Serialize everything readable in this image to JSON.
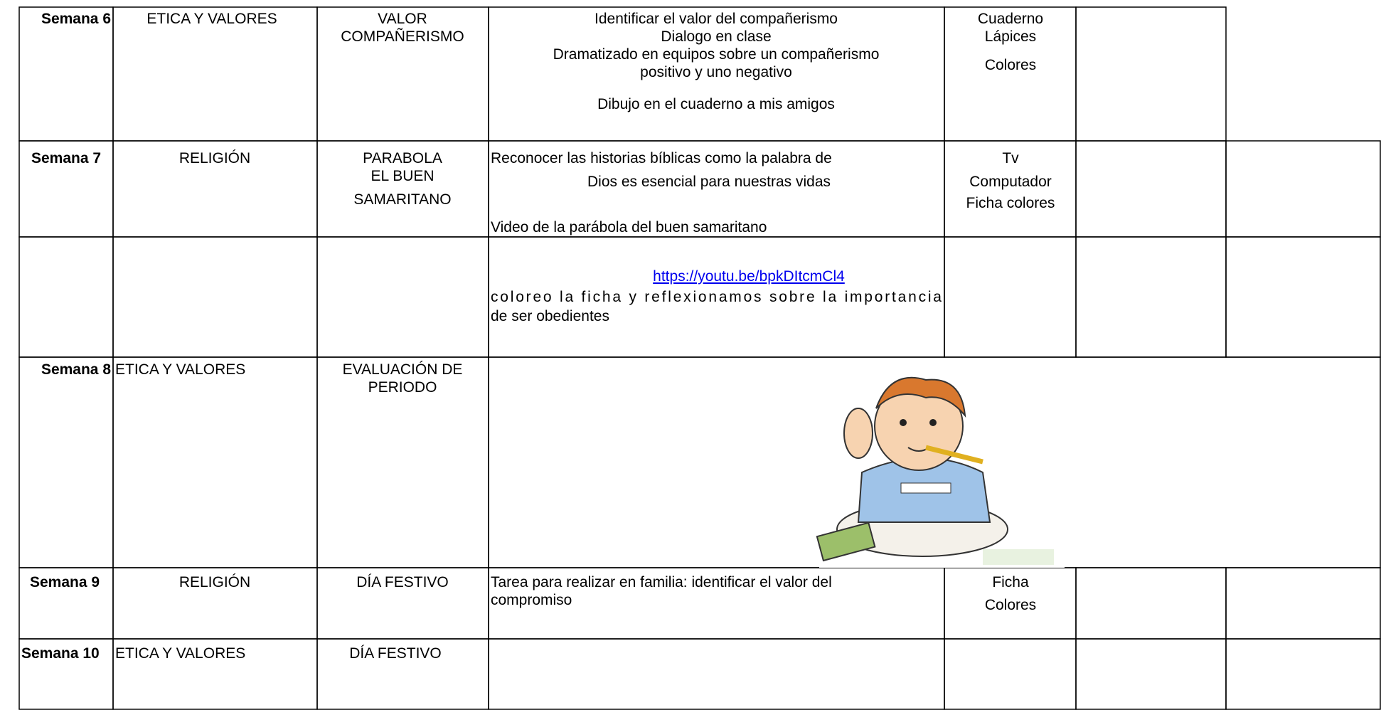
{
  "table": {
    "rows": [
      {
        "week": "Semana 6",
        "subject": "ETICA Y VALORES",
        "topic": [
          "VALOR",
          "COMPAÑERISMO"
        ],
        "activities": [
          "Identificar el valor del compañerismo",
          "Dialogo en clase",
          "Dramatizado en equipos sobre un compañerismo",
          "positivo y uno negativo",
          "Dibujo en el cuaderno a mis amigos"
        ],
        "resources": [
          "Cuaderno",
          "Lápices",
          "Colores"
        ]
      },
      {
        "week": "Semana 7",
        "subject": "RELIGIÓN",
        "topic": [
          "PARABOLA",
          "EL BUEN",
          "SAMARITANO"
        ],
        "activities": [
          "Reconocer las historias bíblicas como la palabra de",
          "Dios es esencial para nuestras vidas",
          "Video de la parábola del buen samaritano"
        ],
        "resources": [
          "Tv",
          "Computador",
          "Ficha colores"
        ]
      },
      {
        "link": "https://youtu.be/bpkDItcmCl4",
        "activities": [
          "coloreo la ficha y reflexionamos sobre la importancia",
          "de ser obedientes"
        ]
      },
      {
        "week": "Semana 8",
        "subject": "ETICA Y VALORES",
        "topic": [
          "EVALUACIÓN DE",
          "PERIODO"
        ]
      },
      {
        "week": "Semana 9",
        "subject": "RELIGIÓN",
        "topic": [
          "DÍA FESTIVO"
        ],
        "activities": [
          "Tarea para realizar en familia: identificar el valor del",
          "compromiso"
        ],
        "resources": [
          "Ficha",
          "Colores"
        ]
      },
      {
        "week": "Semana 10",
        "subject": "ETICA Y VALORES",
        "topic": [
          "DÍA FESTIVO"
        ]
      }
    ]
  }
}
